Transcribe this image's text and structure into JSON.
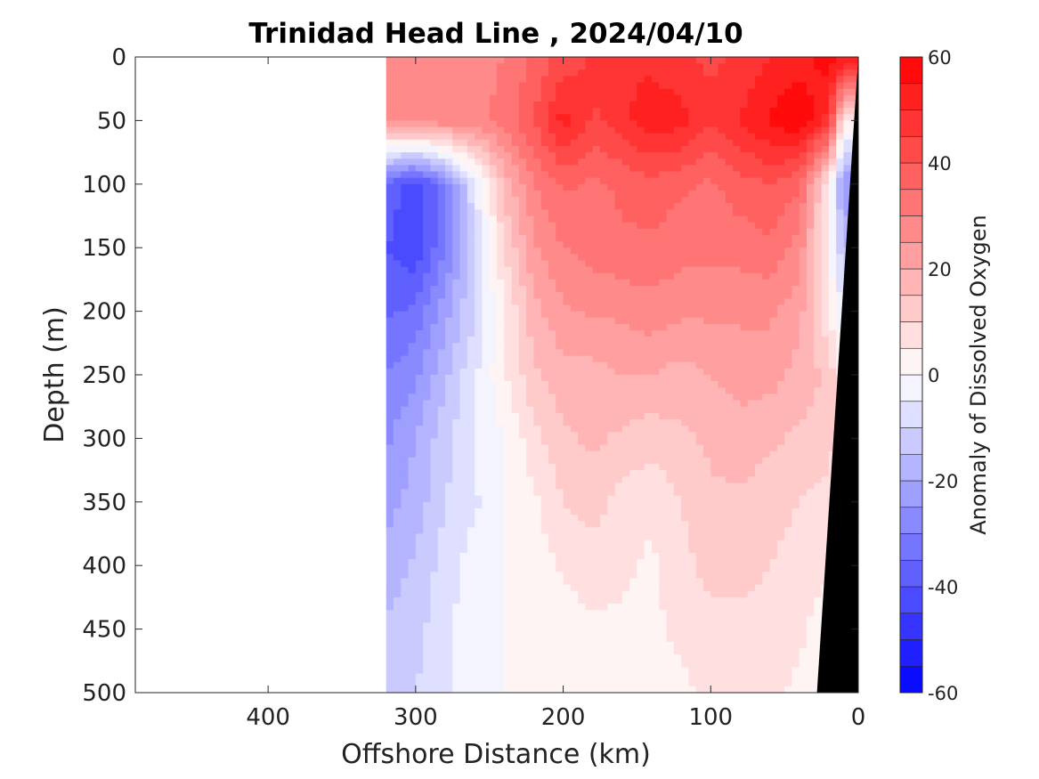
{
  "chart_data": {
    "type": "heatmap",
    "title": "Trinidad Head Line , 2024/04/10",
    "xlabel": "Offshore Distance (km)",
    "ylabel": "Depth (m)",
    "colorbar_label": "Anomaly of Dissolved Oxygen",
    "xlim": [
      490,
      0
    ],
    "ylim": [
      0,
      500
    ],
    "y_reversed": true,
    "x_reversed": true,
    "x_ticks": [
      400,
      300,
      200,
      100,
      0
    ],
    "y_ticks": [
      0,
      50,
      100,
      150,
      200,
      250,
      300,
      350,
      400,
      450,
      500
    ],
    "colorbar_ticks": [
      60,
      40,
      20,
      0,
      -20,
      -40,
      -60
    ],
    "colorbar_range": [
      -60,
      60
    ],
    "contour_interval": 5,
    "colormap": "blue-white-red",
    "colors": {
      "negative": "#0000ff",
      "zero": "#ffffff",
      "positive": "#ff0000",
      "bathymetry": "#000000"
    },
    "data_extent_km": [
      320,
      0
    ],
    "x": [
      320,
      300,
      280,
      260,
      240,
      220,
      200,
      180,
      160,
      140,
      120,
      100,
      80,
      60,
      40,
      20,
      10
    ],
    "depth": [
      0,
      50,
      100,
      150,
      200,
      250,
      300,
      350,
      400,
      450,
      500
    ],
    "values": [
      [
        28,
        28,
        28,
        28,
        30,
        36,
        42,
        46,
        50,
        48,
        46,
        44,
        46,
        50,
        52,
        58,
        56
      ],
      [
        26,
        28,
        28,
        28,
        32,
        40,
        52,
        44,
        48,
        54,
        52,
        46,
        50,
        56,
        60,
        48,
        5
      ],
      [
        -36,
        -44,
        -30,
        -6,
        16,
        30,
        36,
        34,
        36,
        38,
        36,
        34,
        38,
        40,
        36,
        5,
        -25
      ],
      [
        -40,
        -44,
        -30,
        -10,
        10,
        24,
        30,
        32,
        34,
        34,
        32,
        32,
        32,
        34,
        28,
        2,
        -15
      ],
      [
        -36,
        -34,
        -22,
        -10,
        4,
        18,
        24,
        26,
        26,
        28,
        26,
        26,
        26,
        26,
        22,
        5,
        -5
      ],
      [
        -30,
        -26,
        -16,
        -6,
        4,
        14,
        18,
        18,
        20,
        20,
        18,
        20,
        22,
        22,
        18,
        14,
        2
      ],
      [
        -26,
        -20,
        -12,
        -4,
        0,
        8,
        14,
        16,
        14,
        12,
        14,
        16,
        18,
        16,
        14,
        12,
        6
      ],
      [
        -22,
        -18,
        -10,
        -6,
        0,
        4,
        10,
        12,
        8,
        6,
        10,
        14,
        14,
        12,
        10,
        8,
        6
      ],
      [
        -18,
        -14,
        -8,
        -2,
        0,
        2,
        6,
        8,
        6,
        4,
        8,
        12,
        12,
        10,
        8,
        6,
        4
      ],
      [
        -14,
        -12,
        -6,
        -2,
        0,
        0,
        2,
        4,
        4,
        4,
        6,
        8,
        8,
        8,
        6,
        2,
        2
      ],
      [
        -10,
        -10,
        -6,
        -2,
        0,
        0,
        0,
        2,
        2,
        4,
        4,
        6,
        6,
        6,
        4,
        2,
        2
      ]
    ],
    "bathymetry": {
      "shelf_top_km": 0,
      "depth_at_shelf_km": 0,
      "bottom_km": 28,
      "depth_at_bottom_km": 500
    }
  }
}
